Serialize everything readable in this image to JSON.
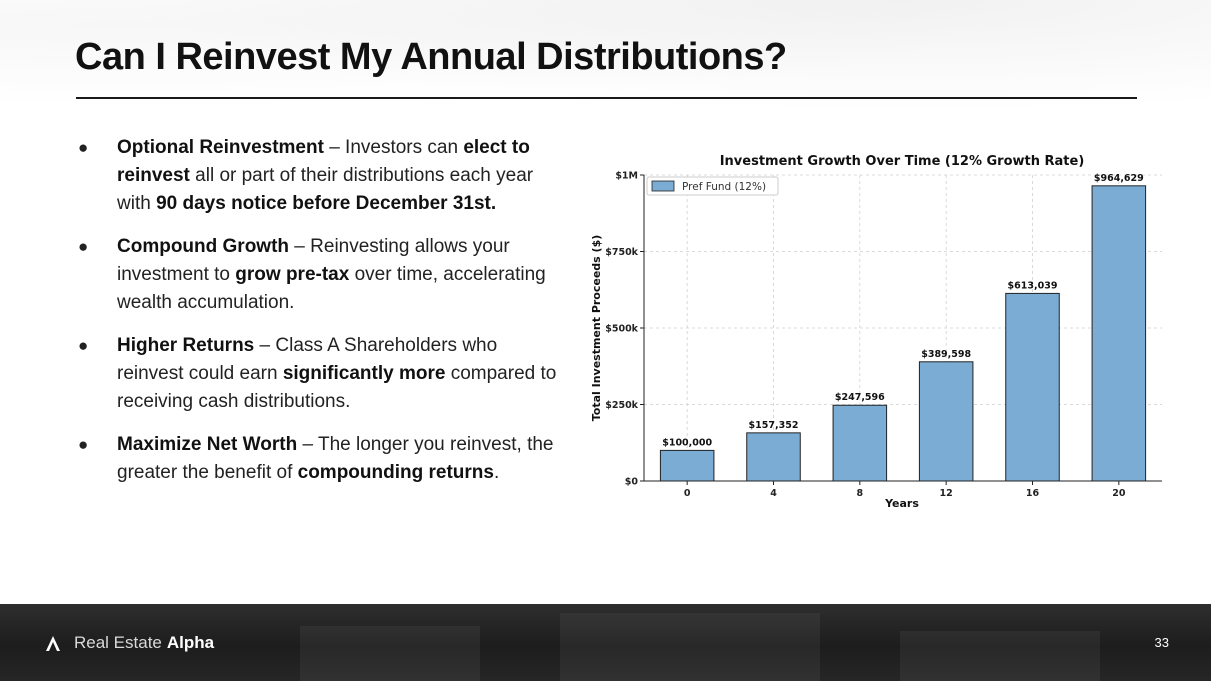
{
  "slide": {
    "title": "Can I Reinvest My Annual Distributions?",
    "page_number": "33"
  },
  "bullets": [
    {
      "dot": "●",
      "parts": [
        {
          "text": "Optional Reinvestment",
          "bold": true
        },
        {
          "text": " – Investors can ",
          "bold": false
        },
        {
          "text": "elect to reinvest",
          "bold": true
        },
        {
          "text": " all or part of their distributions each year with ",
          "bold": false
        },
        {
          "text": "90 days notice before December 31st.",
          "bold": true
        }
      ]
    },
    {
      "dot": "●",
      "parts": [
        {
          "text": "Compound Growth",
          "bold": true
        },
        {
          "text": " – Reinvesting allows your investment to ",
          "bold": false
        },
        {
          "text": "grow pre-tax",
          "bold": true
        },
        {
          "text": " over time, accelerating wealth accumulation.",
          "bold": false
        }
      ]
    },
    {
      "dot": "●",
      "parts": [
        {
          "text": "Higher Returns",
          "bold": true
        },
        {
          "text": " – Class A Shareholders who reinvest could earn ",
          "bold": false
        },
        {
          "text": "significantly more",
          "bold": true
        },
        {
          "text": " compared to receiving cash distributions.",
          "bold": false
        }
      ]
    },
    {
      "dot": "●",
      "parts": [
        {
          "text": "Maximize Net Worth",
          "bold": true
        },
        {
          "text": " – The longer you reinvest, the greater the benefit of ",
          "bold": false
        },
        {
          "text": "compounding returns",
          "bold": true
        },
        {
          "text": ".",
          "bold": false
        }
      ]
    }
  ],
  "chart_data": {
    "type": "bar",
    "title": "Investment Growth Over Time (12% Growth Rate)",
    "xlabel": "Years",
    "ylabel": "Total Investment Proceeds ($)",
    "categories": [
      "0",
      "4",
      "8",
      "12",
      "16",
      "20"
    ],
    "series": [
      {
        "name": "Pref Fund (12%)",
        "values": [
          100000,
          157352,
          247596,
          389598,
          613039,
          964629
        ],
        "color": "#7bacd4"
      }
    ],
    "data_labels": [
      "$100,000",
      "$157,352",
      "$247,596",
      "$389,598",
      "$613,039",
      "$964,629"
    ],
    "yticks": [
      0,
      250000,
      500000,
      750000,
      1000000
    ],
    "ytick_labels": [
      "$0",
      "$250k",
      "$500k",
      "$750k",
      "$1M"
    ],
    "ylim": [
      0,
      1000000
    ],
    "grid": true,
    "legend": "top-left"
  },
  "footer": {
    "logo_light": "Real Estate",
    "logo_bold": "Alpha",
    "logo_icon": "alpha-logo-icon"
  }
}
